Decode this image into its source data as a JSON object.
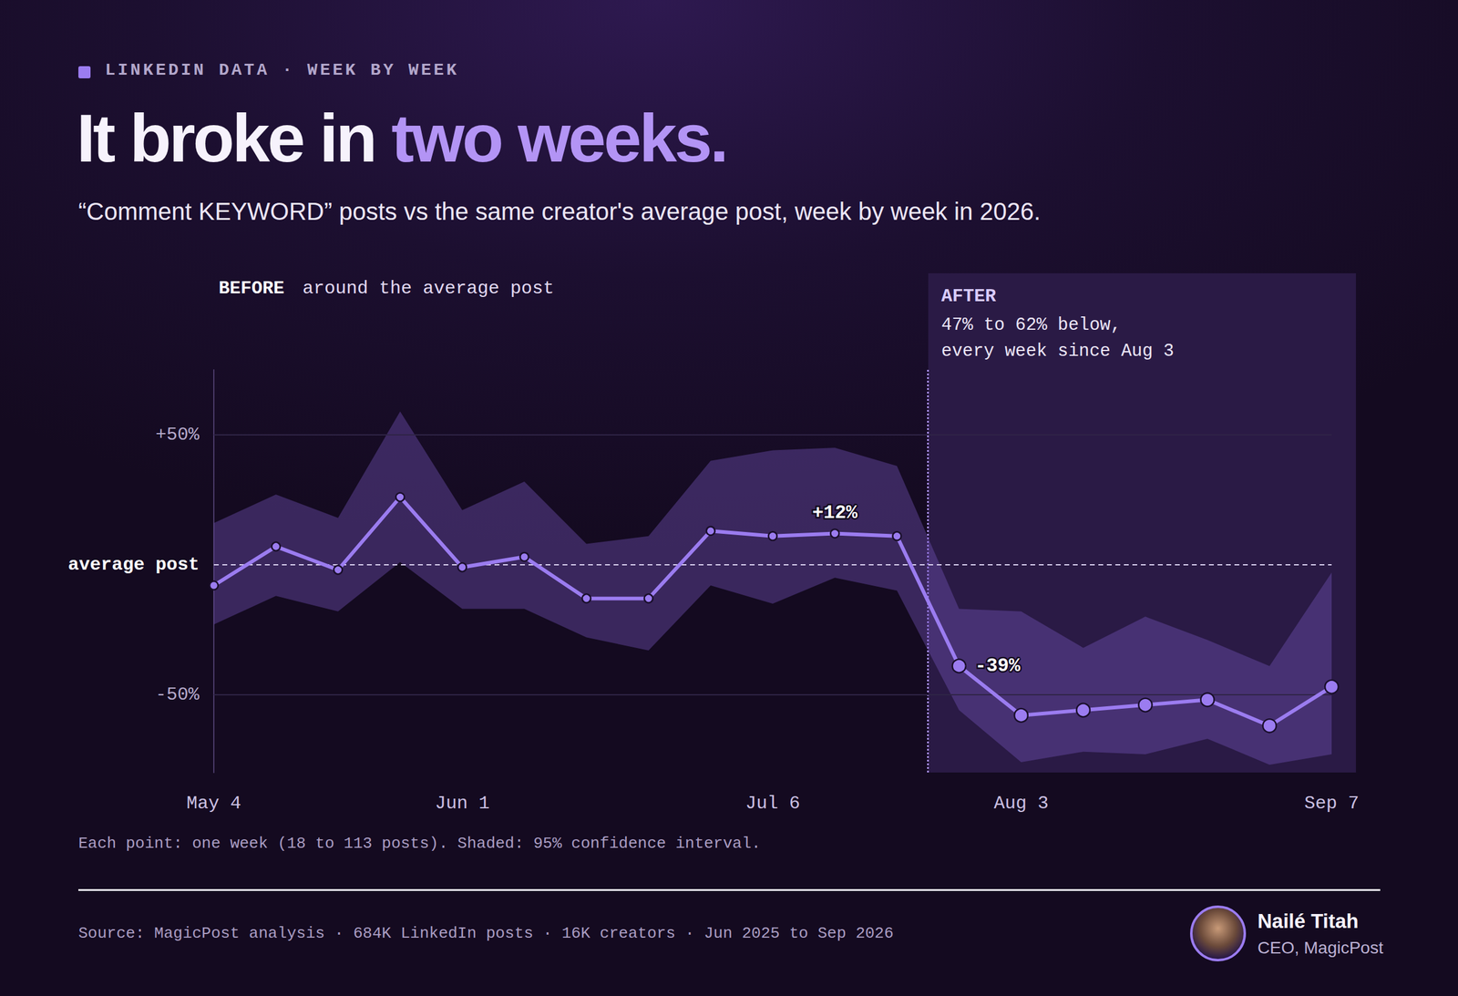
{
  "chart_data": {
    "type": "line",
    "eyebrow": "LINKEDIN DATA · WEEK BY WEEK",
    "title": "It broke in two weeks.",
    "title_highlight": "two weeks.",
    "subtitle": "“Comment KEYWORD” posts vs the same creator's average post, week by week in 2026.",
    "categories": [
      "May 4",
      null,
      null,
      null,
      "Jun 1",
      null,
      null,
      null,
      null,
      "Jul 6",
      null,
      null,
      null,
      "Aug 3",
      null,
      null,
      null,
      null,
      "Sep 7"
    ],
    "values": [
      -8,
      7,
      -2,
      26,
      -1,
      3,
      -13,
      -13,
      13,
      11,
      12,
      11,
      -39,
      -58,
      -56,
      -54,
      -52,
      -62,
      -47
    ],
    "value_labels": [
      null,
      null,
      null,
      null,
      null,
      null,
      null,
      null,
      null,
      null,
      "+12%",
      null,
      "-39%",
      null,
      null,
      null,
      null,
      null,
      null
    ],
    "ci_upper": [
      16,
      27,
      18,
      59,
      21,
      32,
      8,
      11,
      40,
      44,
      45,
      38,
      -17,
      -18,
      -32,
      -20,
      -29,
      -39,
      -3
    ],
    "ci_lower": [
      -23,
      -12,
      -18,
      1,
      -17,
      -17,
      -28,
      -33,
      -8,
      -15,
      -5,
      -10,
      -56,
      -76,
      -72,
      -73,
      -67,
      -77,
      -73
    ],
    "color": "#9b7cf0",
    "marker": "circle",
    "ylim": [
      -80,
      75
    ],
    "yticks": [
      {
        "value": 50,
        "label": "+50%"
      },
      {
        "value": 0,
        "label": "average post"
      },
      {
        "value": -50,
        "label": "-50%"
      }
    ],
    "grid": true,
    "periods": [
      {
        "label": "BEFORE",
        "text": [
          "around the average post"
        ]
      },
      {
        "label": "AFTER",
        "text": [
          "47% to 62% below,",
          "every week since Aug 3"
        ]
      }
    ],
    "note": "Each point: one week (18 to 113 posts). Shaded: 95% confidence interval.",
    "source": "Source: MagicPost analysis · 684K LinkedIn posts · 16K creators · Jun 2025 to Sep 2026",
    "author": {
      "name": "Nailé Titah",
      "role": "CEO, MagicPost"
    }
  }
}
